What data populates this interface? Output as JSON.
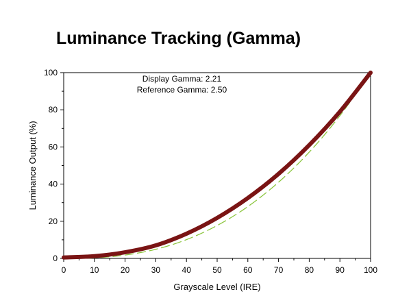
{
  "page": {
    "title": "Luminance Tracking (Gamma)"
  },
  "chart_data": {
    "type": "line",
    "title": "Luminance Tracking (Gamma)",
    "xlabel": "Grayscale Level (IRE)",
    "ylabel": "Luminance Output (%)",
    "xlim": [
      0,
      100
    ],
    "ylim": [
      0,
      100
    ],
    "x_ticks": [
      0,
      10,
      20,
      30,
      40,
      50,
      60,
      70,
      80,
      90,
      100
    ],
    "y_ticks": [
      0,
      20,
      40,
      60,
      80,
      100
    ],
    "grid": false,
    "annotations": [
      "Display Gamma: 2.21",
      "Reference Gamma: 2.50"
    ],
    "x": [
      0,
      10,
      20,
      30,
      40,
      50,
      60,
      70,
      80,
      90,
      100
    ],
    "series": [
      {
        "role": "display",
        "color": "#7a1414",
        "style": "solid",
        "values": [
          0.5,
          1.2,
          3.3,
          7.0,
          13.3,
          21.8,
          32.5,
          45.5,
          61.0,
          79.0,
          100
        ]
      },
      {
        "role": "reference",
        "color": "#8cc63f",
        "style": "dashed",
        "values": [
          0,
          0.3,
          1.8,
          4.9,
          10.1,
          17.7,
          27.9,
          41.0,
          57.2,
          76.8,
          100
        ]
      }
    ]
  }
}
